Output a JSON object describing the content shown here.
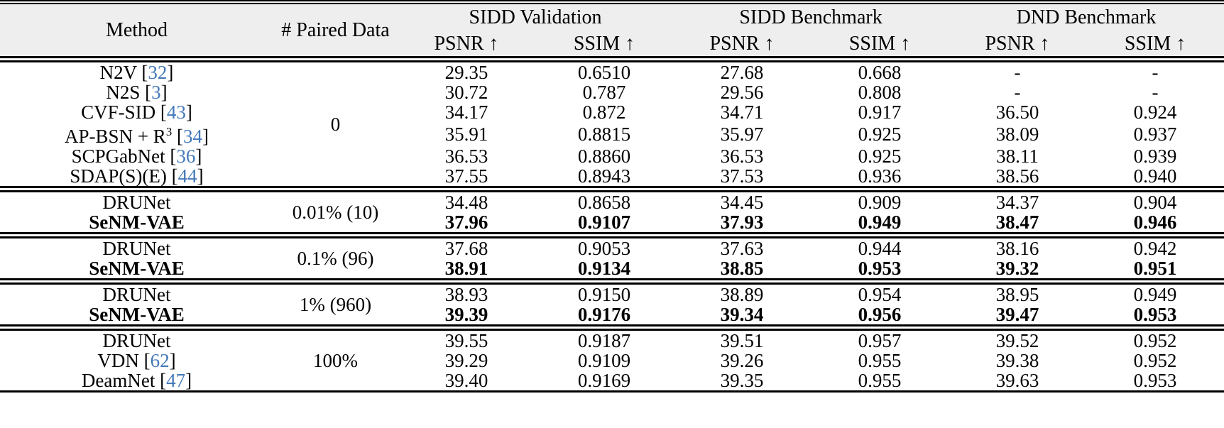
{
  "table": {
    "header": {
      "method_label": "Method",
      "paired_data_label": "# Paired Data",
      "col_groups": [
        {
          "label": "SIDD Validation",
          "sub": [
            "PSNR ↑",
            "SSIM ↑"
          ]
        },
        {
          "label": "SIDD Benchmark",
          "sub": [
            "PSNR ↑",
            "SSIM ↑"
          ]
        },
        {
          "label": "DND Benchmark",
          "sub": [
            "PSNR ↑",
            "SSIM ↑"
          ]
        }
      ]
    },
    "groups": [
      {
        "paired_data": "0",
        "rows": [
          {
            "method": "N2V",
            "cite": "32",
            "bold": false,
            "values": [
              "29.35",
              "0.6510",
              "27.68",
              "0.668",
              "-",
              "-"
            ]
          },
          {
            "method": "N2S",
            "cite": "3",
            "bold": false,
            "values": [
              "30.72",
              "0.787",
              "29.56",
              "0.808",
              "-",
              "-"
            ]
          },
          {
            "method": "CVF-SID",
            "cite": "43",
            "bold": false,
            "values": [
              "34.17",
              "0.872",
              "34.71",
              "0.917",
              "36.50",
              "0.924"
            ]
          },
          {
            "method": "AP-BSN + R",
            "sup": "3",
            "cite": "34",
            "bold": false,
            "values": [
              "35.91",
              "0.8815",
              "35.97",
              "0.925",
              "38.09",
              "0.937"
            ]
          },
          {
            "method": "SCPGabNet",
            "cite": "36",
            "bold": false,
            "values": [
              "36.53",
              "0.8860",
              "36.53",
              "0.925",
              "38.11",
              "0.939"
            ]
          },
          {
            "method": "SDAP(S)(E)",
            "cite": "44",
            "bold": false,
            "values": [
              "37.55",
              "0.8943",
              "37.53",
              "0.936",
              "38.56",
              "0.940"
            ]
          }
        ]
      },
      {
        "paired_data": "0.01% (10)",
        "rows": [
          {
            "method": "DRUNet",
            "bold": false,
            "values": [
              "34.48",
              "0.8658",
              "34.45",
              "0.909",
              "34.37",
              "0.904"
            ]
          },
          {
            "method": "SeNM-VAE",
            "bold": true,
            "values": [
              "37.96",
              "0.9107",
              "37.93",
              "0.949",
              "38.47",
              "0.946"
            ]
          }
        ]
      },
      {
        "paired_data": "0.1% (96)",
        "rows": [
          {
            "method": "DRUNet",
            "bold": false,
            "values": [
              "37.68",
              "0.9053",
              "37.63",
              "0.944",
              "38.16",
              "0.942"
            ]
          },
          {
            "method": "SeNM-VAE",
            "bold": true,
            "values": [
              "38.91",
              "0.9134",
              "38.85",
              "0.953",
              "39.32",
              "0.951"
            ]
          }
        ]
      },
      {
        "paired_data": "1% (960)",
        "rows": [
          {
            "method": "DRUNet",
            "bold": false,
            "values": [
              "38.93",
              "0.9150",
              "38.89",
              "0.954",
              "38.95",
              "0.949"
            ]
          },
          {
            "method": "SeNM-VAE",
            "bold": true,
            "values": [
              "39.39",
              "0.9176",
              "39.34",
              "0.956",
              "39.47",
              "0.953"
            ]
          }
        ]
      },
      {
        "paired_data": "100%",
        "rows": [
          {
            "method": "DRUNet",
            "bold": false,
            "values": [
              "39.55",
              "0.9187",
              "39.51",
              "0.957",
              "39.52",
              "0.952"
            ]
          },
          {
            "method": "VDN",
            "cite": "62",
            "bold": false,
            "values": [
              "39.29",
              "0.9109",
              "39.26",
              "0.955",
              "39.38",
              "0.952"
            ]
          },
          {
            "method": "DeamNet",
            "cite": "47",
            "bold": false,
            "values": [
              "39.40",
              "0.9169",
              "39.35",
              "0.955",
              "39.63",
              "0.953"
            ]
          }
        ]
      }
    ],
    "colors": {
      "citation_blue": "#4379b8",
      "header_bg": "#eeeeee",
      "rule_black": "#000000"
    }
  }
}
